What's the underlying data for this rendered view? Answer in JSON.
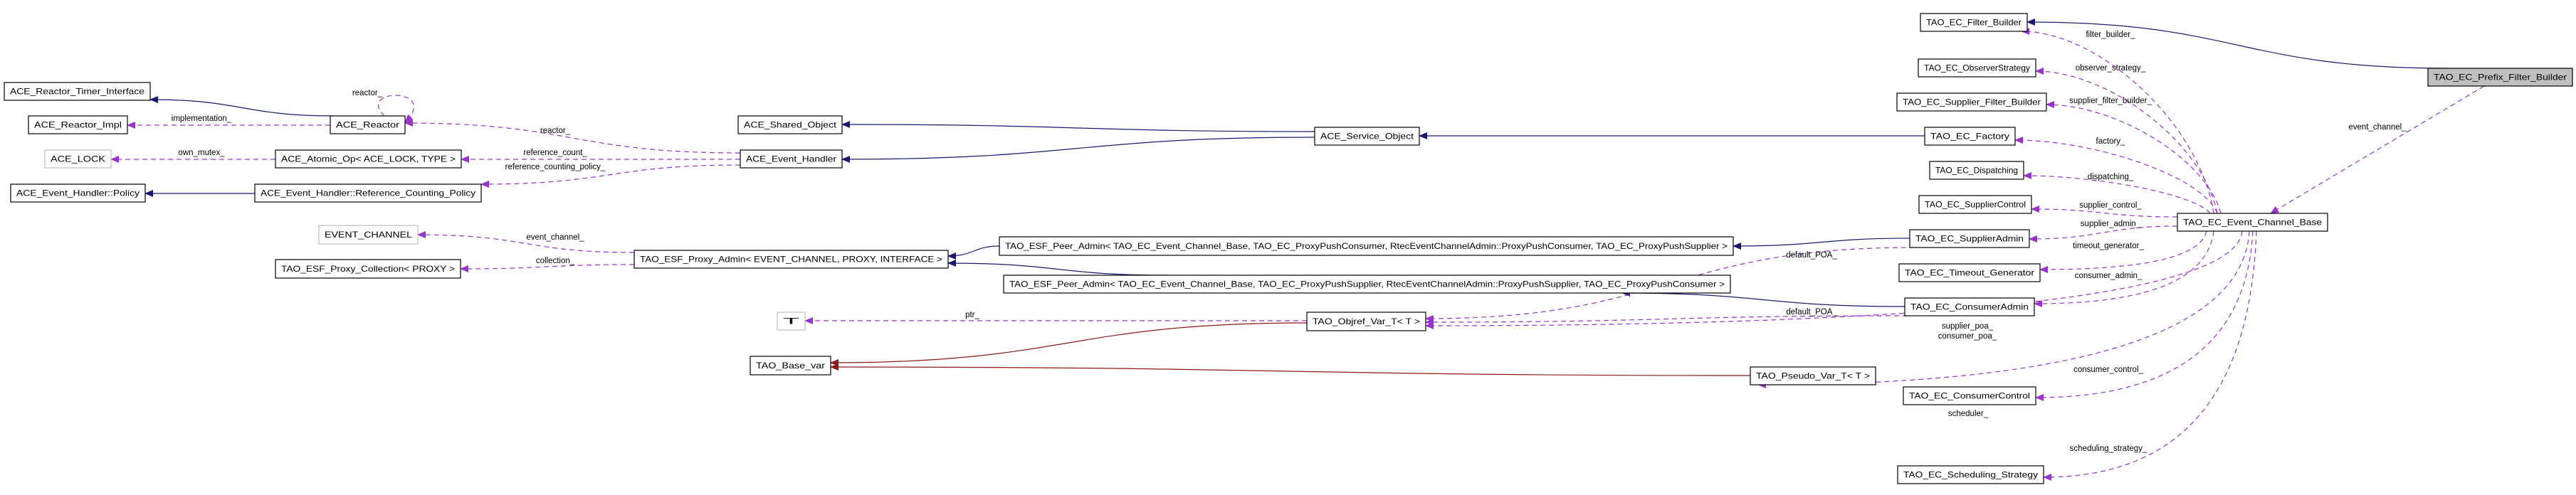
{
  "colors": {
    "inheritance": "#191970",
    "usage": "#9a32cd",
    "template": "#8b1a1a",
    "focus_fill": "#bfbfbf",
    "undocumented_border": "#bfbfbf"
  },
  "nodes": [
    {
      "id": "timer",
      "label": "ACE_Reactor_Timer_Interface",
      "style": "normal"
    },
    {
      "id": "impl",
      "label": "ACE_Reactor_Impl",
      "style": "normal"
    },
    {
      "id": "reactor",
      "label": "ACE_Reactor",
      "style": "normal"
    },
    {
      "id": "lock",
      "label": "ACE_LOCK",
      "style": "gray"
    },
    {
      "id": "atomic",
      "label": "ACE_Atomic_Op< ACE_LOCK, TYPE >",
      "style": "normal"
    },
    {
      "id": "policy",
      "label": "ACE_Event_Handler::Policy",
      "style": "normal"
    },
    {
      "id": "rcp",
      "label": "ACE_Event_Handler::Reference_Counting_Policy",
      "style": "normal"
    },
    {
      "id": "evch",
      "label": "EVENT_CHANNEL",
      "style": "gray"
    },
    {
      "id": "coll",
      "label": "TAO_ESF_Proxy_Collection< PROXY >",
      "style": "normal"
    },
    {
      "id": "shared",
      "label": "ACE_Shared_Object",
      "style": "normal"
    },
    {
      "id": "handler",
      "label": "ACE_Event_Handler",
      "style": "normal"
    },
    {
      "id": "service",
      "label": "ACE_Service_Object",
      "style": "normal"
    },
    {
      "id": "padmin",
      "label": "TAO_ESF_Proxy_Admin< EVENT_CHANNEL, PROXY, INTERFACE >",
      "style": "normal"
    },
    {
      "id": "peer1",
      "label": "TAO_ESF_Peer_Admin< TAO_EC_Event_Channel_Base, TAO_EC_ProxyPushConsumer, RtecEventChannelAdmin::ProxyPushConsumer, TAO_EC_ProxyPushSupplier >",
      "style": "normal"
    },
    {
      "id": "peer2",
      "label": "TAO_ESF_Peer_Admin< TAO_EC_Event_Channel_Base, TAO_EC_ProxyPushSupplier, RtecEventChannelAdmin::ProxyPushSupplier, TAO_EC_ProxyPushConsumer >",
      "style": "normal"
    },
    {
      "id": "T",
      "label": "T",
      "style": "gray"
    },
    {
      "id": "basevar",
      "label": "TAO_Base_var",
      "style": "normal"
    },
    {
      "id": "objref",
      "label": "TAO_Objref_Var_T< T >",
      "style": "normal"
    },
    {
      "id": "pseudo",
      "label": "TAO_Pseudo_Var_T< T >",
      "style": "normal"
    },
    {
      "id": "fb",
      "label": "TAO_EC_Filter_Builder",
      "style": "normal"
    },
    {
      "id": "obs",
      "label": "TAO_EC_ObserverStrategy",
      "style": "normal"
    },
    {
      "id": "sfb",
      "label": "TAO_EC_Supplier_Filter_Builder",
      "style": "normal"
    },
    {
      "id": "factory",
      "label": "TAO_EC_Factory",
      "style": "normal"
    },
    {
      "id": "disp",
      "label": "TAO_EC_Dispatching",
      "style": "normal"
    },
    {
      "id": "sctl",
      "label": "TAO_EC_SupplierControl",
      "style": "normal"
    },
    {
      "id": "sadm",
      "label": "TAO_EC_SupplierAdmin",
      "style": "normal"
    },
    {
      "id": "tgen",
      "label": "TAO_EC_Timeout_Generator",
      "style": "normal"
    },
    {
      "id": "cadm",
      "label": "TAO_EC_ConsumerAdmin",
      "style": "normal"
    },
    {
      "id": "cctl",
      "label": "TAO_EC_ConsumerControl",
      "style": "normal"
    },
    {
      "id": "sched",
      "label": "TAO_EC_Scheduling_Strategy",
      "style": "normal"
    },
    {
      "id": "ecbase",
      "label": "TAO_EC_Event_Channel_Base",
      "style": "normal"
    },
    {
      "id": "prefix",
      "label": "TAO_EC_Prefix_Filter_Builder",
      "style": "focus"
    }
  ],
  "edges": [
    {
      "from": "reactor",
      "to": "timer",
      "kind": "inheritance",
      "label": ""
    },
    {
      "from": "reactor",
      "to": "impl",
      "kind": "usage",
      "label": "implementation_"
    },
    {
      "from": "reactor",
      "to": "reactor",
      "kind": "usage",
      "label": "reactor_"
    },
    {
      "from": "atomic",
      "to": "lock",
      "kind": "usage",
      "label": "own_mutex_"
    },
    {
      "from": "rcp",
      "to": "policy",
      "kind": "inheritance",
      "label": ""
    },
    {
      "from": "handler",
      "to": "reactor",
      "kind": "usage",
      "label": "reactor_"
    },
    {
      "from": "handler",
      "to": "atomic",
      "kind": "usage",
      "label": "reference_count_"
    },
    {
      "from": "handler",
      "to": "rcp",
      "kind": "usage",
      "label": "reference_counting_policy_"
    },
    {
      "from": "service",
      "to": "shared",
      "kind": "inheritance",
      "label": ""
    },
    {
      "from": "service",
      "to": "handler",
      "kind": "inheritance",
      "label": ""
    },
    {
      "from": "factory",
      "to": "service",
      "kind": "inheritance",
      "label": ""
    },
    {
      "from": "padmin",
      "to": "evch",
      "kind": "usage",
      "label": "event_channel_"
    },
    {
      "from": "padmin",
      "to": "coll",
      "kind": "usage",
      "label": "collection_"
    },
    {
      "from": "peer1",
      "to": "padmin",
      "kind": "inheritance",
      "label": ""
    },
    {
      "from": "peer2",
      "to": "padmin",
      "kind": "inheritance",
      "label": ""
    },
    {
      "from": "sadm",
      "to": "peer1",
      "kind": "inheritance",
      "label": ""
    },
    {
      "from": "cadm",
      "to": "peer2",
      "kind": "inheritance",
      "label": ""
    },
    {
      "from": "objref",
      "to": "T",
      "kind": "usage",
      "label": "ptr_"
    },
    {
      "from": "objref",
      "to": "basevar",
      "kind": "template",
      "label": ""
    },
    {
      "from": "pseudo",
      "to": "basevar",
      "kind": "template",
      "label": ""
    },
    {
      "from": "sadm",
      "to": "objref",
      "kind": "usage",
      "label": "default_POA_"
    },
    {
      "from": "cadm",
      "to": "objref",
      "kind": "usage",
      "label": "default_POA_"
    },
    {
      "from": "ecbase",
      "to": "objref",
      "kind": "usage",
      "label": "supplier_poa_\nconsumer_poa_"
    },
    {
      "from": "ecbase",
      "to": "pseudo",
      "kind": "usage",
      "label": "scheduler_"
    },
    {
      "from": "ecbase",
      "to": "fb",
      "kind": "usage",
      "label": "filter_builder_"
    },
    {
      "from": "ecbase",
      "to": "obs",
      "kind": "usage",
      "label": "observer_strategy_"
    },
    {
      "from": "ecbase",
      "to": "sfb",
      "kind": "usage",
      "label": "supplier_filter_builder_"
    },
    {
      "from": "ecbase",
      "to": "factory",
      "kind": "usage",
      "label": "factory_"
    },
    {
      "from": "ecbase",
      "to": "disp",
      "kind": "usage",
      "label": "dispatching_"
    },
    {
      "from": "ecbase",
      "to": "sctl",
      "kind": "usage",
      "label": "supplier_control_"
    },
    {
      "from": "ecbase",
      "to": "sadm",
      "kind": "usage",
      "label": "supplier_admin_"
    },
    {
      "from": "ecbase",
      "to": "tgen",
      "kind": "usage",
      "label": "timeout_generator_"
    },
    {
      "from": "ecbase",
      "to": "cadm",
      "kind": "usage",
      "label": "consumer_admin_"
    },
    {
      "from": "ecbase",
      "to": "cctl",
      "kind": "usage",
      "label": "consumer_control_"
    },
    {
      "from": "ecbase",
      "to": "sched",
      "kind": "usage",
      "label": "scheduling_strategy_"
    },
    {
      "from": "prefix",
      "to": "fb",
      "kind": "inheritance",
      "label": ""
    },
    {
      "from": "prefix",
      "to": "ecbase",
      "kind": "usage",
      "label": "event_channel_"
    }
  ]
}
